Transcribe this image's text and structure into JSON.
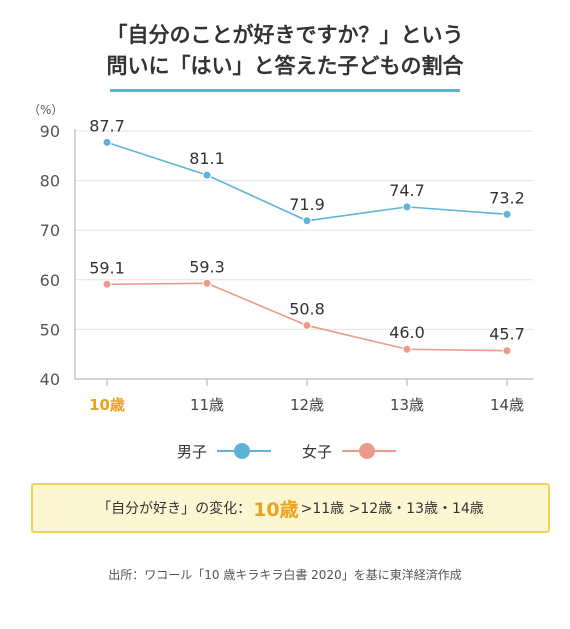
{
  "title": {
    "line1": "「自分のことが好きですか？」という",
    "line2": "問いに「はい」と答えた子どもの割合"
  },
  "chart_data": {
    "type": "line",
    "yunit": "（%）",
    "ylim": [
      40,
      90
    ],
    "yticks": [
      40,
      50,
      60,
      70,
      80,
      90
    ],
    "categories": [
      "10歳",
      "11歳",
      "12歳",
      "13歳",
      "14歳"
    ],
    "highlight_category": "10歳",
    "grid": true,
    "legend_position": "bottom",
    "series": [
      {
        "name": "男子",
        "color": "#5fb3d9",
        "values": [
          87.7,
          81.1,
          71.9,
          74.7,
          73.2
        ],
        "labels": [
          "87.7",
          "81.1",
          "71.9",
          "74.7",
          "73.2"
        ]
      },
      {
        "name": "女子",
        "color": "#ec9a8a",
        "values": [
          59.1,
          59.3,
          50.8,
          46.0,
          45.7
        ],
        "labels": [
          "59.1",
          "59.3",
          "50.8",
          "46.0",
          "45.7"
        ]
      }
    ]
  },
  "colors": {
    "highlight": "#eba21d",
    "axis": "#bbbbbb",
    "grid": "#e3e3e3"
  },
  "summary": {
    "prefix": "「自分が好き」の変化：",
    "highlight": "10歳",
    "rest": ">11歳 >12歳・13歳・14歳"
  },
  "source": "出所：ワコール「10 歳キラキラ白書 2020」を基に東洋経済作成"
}
